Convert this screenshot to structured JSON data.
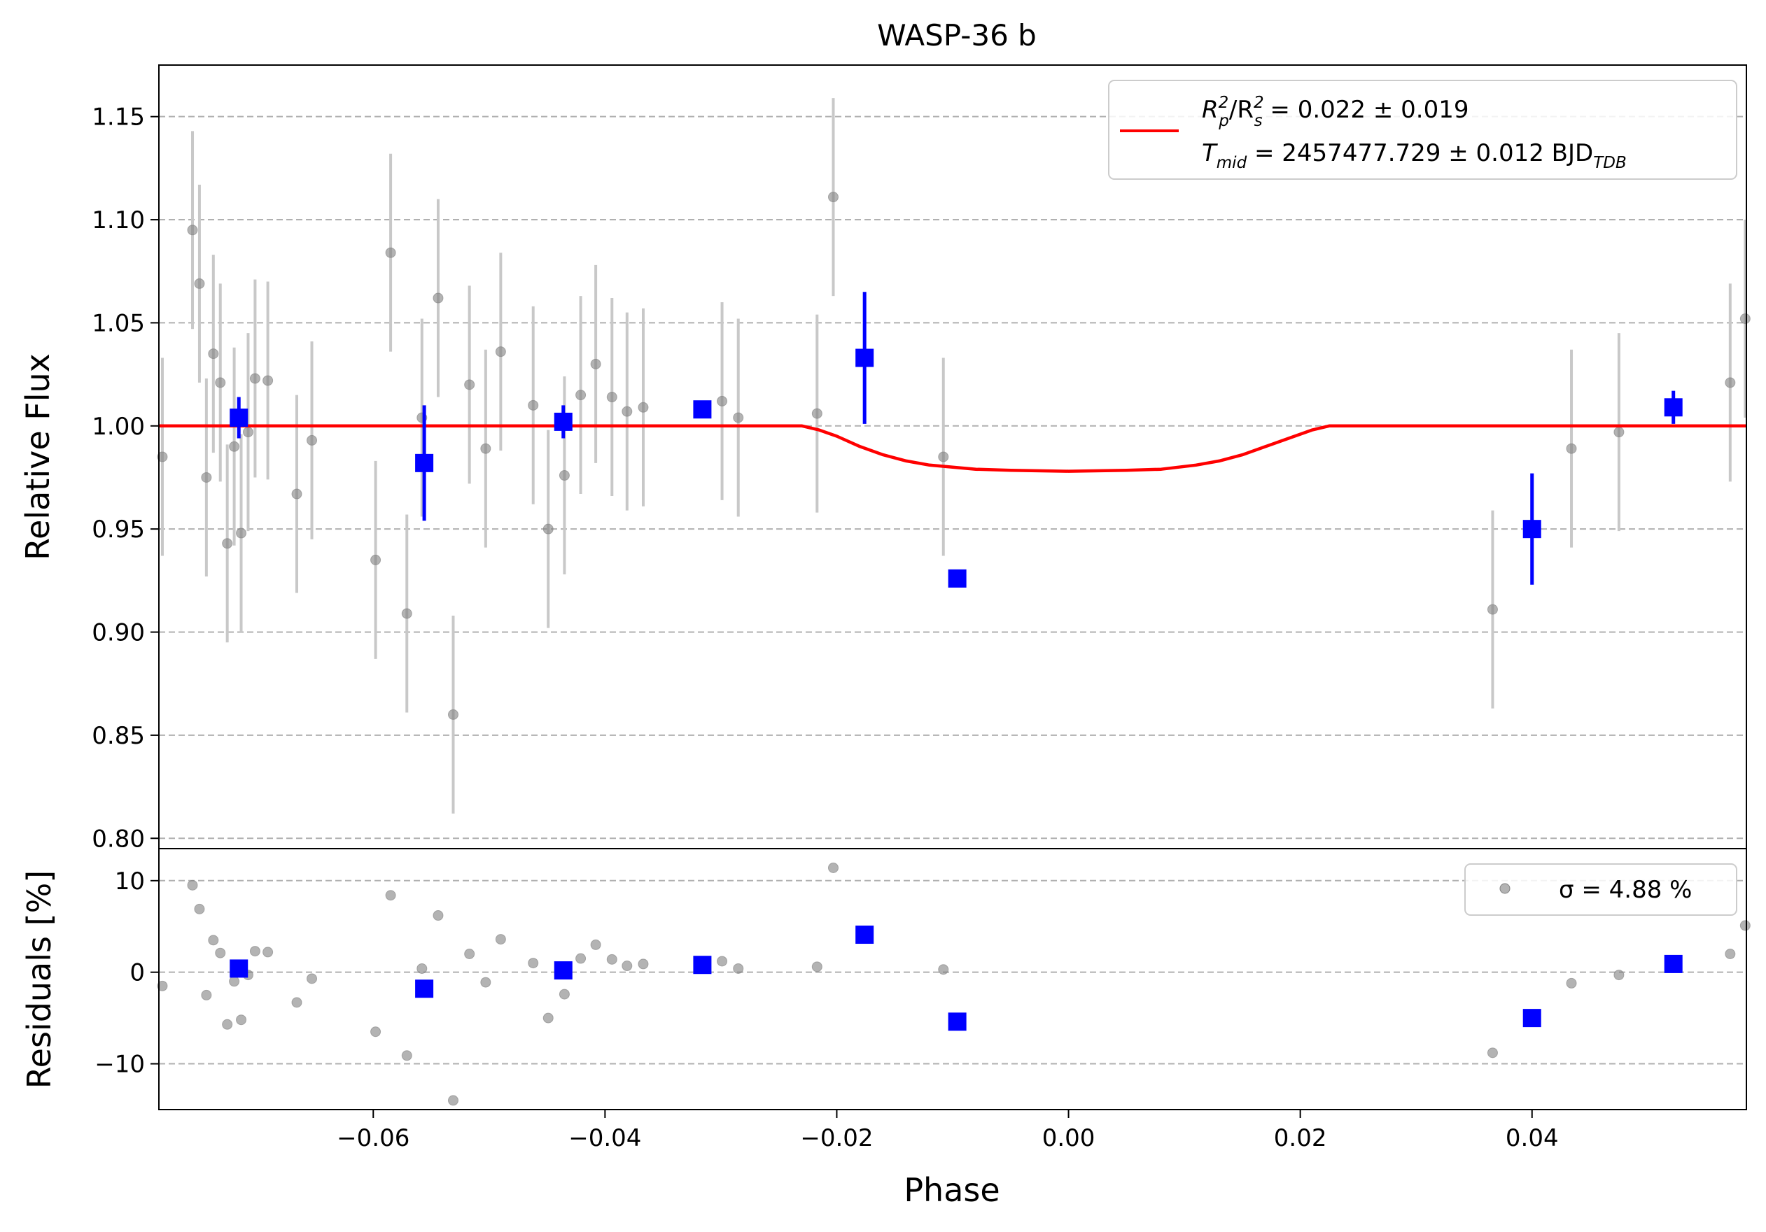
{
  "chart_data": {
    "type": "scatter",
    "title": "WASP-36 b",
    "xlabel": "Phase",
    "xlim": [
      -0.0785,
      0.0585
    ],
    "xticks": [
      -0.06,
      -0.04,
      -0.02,
      0.0,
      0.02,
      0.04
    ],
    "xtick_labels": [
      "−0.06",
      "−0.04",
      "−0.02",
      "0.00",
      "0.02",
      "0.04"
    ],
    "colors": {
      "raw": "#808080",
      "raw_err": "#c8c8c8",
      "binned": "#0000ff",
      "model": "#ff0000",
      "grid": "#b0b0b0"
    },
    "panels": {
      "main": {
        "ylabel": "Relative Flux",
        "ylim": [
          0.795,
          1.175
        ],
        "yticks": [
          0.8,
          0.85,
          0.9,
          0.95,
          1.0,
          1.05,
          1.1,
          1.15
        ],
        "ytick_labels": [
          "0.80",
          "0.85",
          "0.90",
          "0.95",
          "1.00",
          "1.05",
          "1.10",
          "1.15"
        ],
        "grid": "horizontal-dashed",
        "legend": {
          "placement": "top-right",
          "line1_a": "R",
          "line1_sup1": "2",
          "line1_sub1": "p",
          "line1_b": "/R",
          "line1_sup2": "2",
          "line1_sub2": "s",
          "line1_val": " = 0.022 ± 0.019",
          "line2_a": "T",
          "line2_sub": "mid",
          "line2_val": " = 2457477.729 ± 0.012 BJD",
          "line2_sub2": "TDB"
        }
      },
      "residuals": {
        "ylabel": "Residuals [%]",
        "ylim": [
          -15,
          13.5
        ],
        "yticks": [
          -10,
          0,
          10
        ],
        "ytick_labels": [
          "−10",
          "0",
          "10"
        ],
        "grid": "horizontal-dashed",
        "legend": {
          "placement": "top-right",
          "text": "σ = 4.88 %"
        }
      }
    },
    "raw_points": [
      {
        "x": -0.0782,
        "y": 0.985,
        "err": 0.048,
        "res": -1.5
      },
      {
        "x": -0.0756,
        "y": 1.095,
        "err": 0.048,
        "res": 9.5
      },
      {
        "x": -0.075,
        "y": 1.069,
        "err": 0.048,
        "res": 6.9
      },
      {
        "x": -0.0744,
        "y": 0.975,
        "err": 0.048,
        "res": -2.5
      },
      {
        "x": -0.0738,
        "y": 1.035,
        "err": 0.048,
        "res": 3.5
      },
      {
        "x": -0.0732,
        "y": 1.021,
        "err": 0.048,
        "res": 2.1
      },
      {
        "x": -0.0726,
        "y": 0.943,
        "err": 0.048,
        "res": -5.7
      },
      {
        "x": -0.072,
        "y": 0.99,
        "err": 0.048,
        "res": -1.0
      },
      {
        "x": -0.0714,
        "y": 0.948,
        "err": 0.048,
        "res": -5.2
      },
      {
        "x": -0.0708,
        "y": 0.997,
        "err": 0.048,
        "res": -0.3
      },
      {
        "x": -0.0702,
        "y": 1.023,
        "err": 0.048,
        "res": 2.3
      },
      {
        "x": -0.0691,
        "y": 1.022,
        "err": 0.048,
        "res": 2.2
      },
      {
        "x": -0.0666,
        "y": 0.967,
        "err": 0.048,
        "res": -3.3
      },
      {
        "x": -0.0653,
        "y": 0.993,
        "err": 0.048,
        "res": -0.7
      },
      {
        "x": -0.0598,
        "y": 0.935,
        "err": 0.048,
        "res": -6.5
      },
      {
        "x": -0.0585,
        "y": 1.084,
        "err": 0.048,
        "res": 8.4
      },
      {
        "x": -0.0571,
        "y": 0.909,
        "err": 0.048,
        "res": -9.1
      },
      {
        "x": -0.0558,
        "y": 1.004,
        "err": 0.048,
        "res": 0.4
      },
      {
        "x": -0.0544,
        "y": 1.062,
        "err": 0.048,
        "res": 6.2
      },
      {
        "x": -0.0531,
        "y": 0.86,
        "err": 0.048,
        "res": -14.0
      },
      {
        "x": -0.0517,
        "y": 1.02,
        "err": 0.048,
        "res": 2.0
      },
      {
        "x": -0.0503,
        "y": 0.989,
        "err": 0.048,
        "res": -1.1
      },
      {
        "x": -0.049,
        "y": 1.036,
        "err": 0.048,
        "res": 3.6
      },
      {
        "x": -0.0462,
        "y": 1.01,
        "err": 0.048,
        "res": 1.0
      },
      {
        "x": -0.0449,
        "y": 0.95,
        "err": 0.048,
        "res": -5.0
      },
      {
        "x": -0.0435,
        "y": 0.976,
        "err": 0.048,
        "res": -2.4
      },
      {
        "x": -0.0421,
        "y": 1.015,
        "err": 0.048,
        "res": 1.5
      },
      {
        "x": -0.0408,
        "y": 1.03,
        "err": 0.048,
        "res": 3.0
      },
      {
        "x": -0.0394,
        "y": 1.014,
        "err": 0.048,
        "res": 1.4
      },
      {
        "x": -0.0381,
        "y": 1.007,
        "err": 0.048,
        "res": 0.7
      },
      {
        "x": -0.0367,
        "y": 1.009,
        "err": 0.048,
        "res": 0.9
      },
      {
        "x": -0.0299,
        "y": 1.012,
        "err": 0.048,
        "res": 1.2
      },
      {
        "x": -0.0285,
        "y": 1.004,
        "err": 0.048,
        "res": 0.4
      },
      {
        "x": -0.0217,
        "y": 1.006,
        "err": 0.048,
        "res": 0.6
      },
      {
        "x": -0.0203,
        "y": 1.111,
        "err": 0.048,
        "res": 11.4
      },
      {
        "x": -0.0108,
        "y": 0.985,
        "err": 0.048,
        "res": 0.3
      },
      {
        "x": 0.0366,
        "y": 0.911,
        "err": 0.048,
        "res": -8.8
      },
      {
        "x": 0.0434,
        "y": 0.989,
        "err": 0.048,
        "res": -1.2
      },
      {
        "x": 0.0475,
        "y": 0.997,
        "err": 0.048,
        "res": -0.3
      },
      {
        "x": 0.0571,
        "y": 1.021,
        "err": 0.048,
        "res": 2.0
      },
      {
        "x": 0.0584,
        "y": 1.052,
        "err": 0.048,
        "res": 5.1
      }
    ],
    "binned_points": [
      {
        "x": -0.0716,
        "y": 1.004,
        "err": 0.01,
        "res": 0.4
      },
      {
        "x": -0.0556,
        "y": 0.982,
        "err": 0.028,
        "res": -1.8
      },
      {
        "x": -0.0436,
        "y": 1.002,
        "err": 0.008,
        "res": 0.2
      },
      {
        "x": -0.0316,
        "y": 1.008,
        "err": 0.0,
        "res": 0.8
      },
      {
        "x": -0.0176,
        "y": 1.033,
        "err": 0.032,
        "res": 4.1
      },
      {
        "x": -0.0096,
        "y": 0.926,
        "err": 0.0,
        "res": -5.4
      },
      {
        "x": 0.04,
        "y": 0.95,
        "err": 0.027,
        "res": -5.0
      },
      {
        "x": 0.0522,
        "y": 1.009,
        "err": 0.008,
        "res": 0.9
      }
    ],
    "model": {
      "name": "transit model",
      "x": [
        -0.0785,
        -0.023,
        -0.0215,
        -0.02,
        -0.018,
        -0.016,
        -0.014,
        -0.012,
        -0.01,
        -0.008,
        -0.005,
        0.0,
        0.005,
        0.008,
        0.011,
        0.013,
        0.015,
        0.017,
        0.019,
        0.021,
        0.0225,
        0.024,
        0.0585
      ],
      "y": [
        1.0,
        1.0,
        0.998,
        0.995,
        0.99,
        0.986,
        0.983,
        0.981,
        0.98,
        0.979,
        0.9785,
        0.978,
        0.9785,
        0.979,
        0.981,
        0.983,
        0.986,
        0.99,
        0.994,
        0.998,
        1.0,
        1.0,
        1.0
      ]
    }
  }
}
